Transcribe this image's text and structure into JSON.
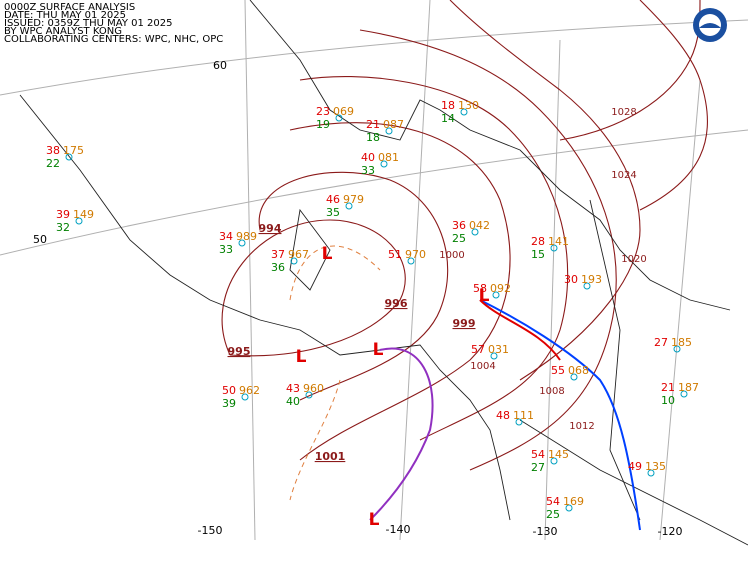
{
  "header": {
    "lines": [
      "0000Z SURFACE ANALYSIS",
      "DATE: THU MAY 01 2025",
      "ISSUED: 0359Z THU MAY 01 2025",
      "BY WPC ANALYST KONG",
      "COLLABORATING CENTERS: WPC, NHC, OPC"
    ]
  },
  "grid_labels": [
    "60",
    "50",
    "-150",
    "-140",
    "-130",
    "-120"
  ],
  "isobar_labels": [
    "994",
    "996",
    "999",
    "995",
    "1001",
    "1000",
    "1004",
    "1008",
    "1012",
    "1020",
    "1024",
    "1028"
  ],
  "lows": [
    "L",
    "L",
    "L",
    "L",
    "L"
  ],
  "stations": [
    {
      "temp": "23",
      "dewpoint": "19",
      "pressure": "069"
    },
    {
      "temp": "21",
      "dewpoint": "18",
      "pressure": "087"
    },
    {
      "temp": "18",
      "dewpoint": "14",
      "pressure": "130"
    },
    {
      "temp": "40",
      "dewpoint": "33",
      "pressure": "081"
    },
    {
      "temp": "38",
      "dewpoint": "22",
      "pressure": "175"
    },
    {
      "temp": "39",
      "dewpoint": "32",
      "pressure": "149"
    },
    {
      "temp": "34",
      "dewpoint": "33",
      "pressure": "989"
    },
    {
      "temp": "37",
      "dewpoint": "36",
      "pressure": "967"
    },
    {
      "temp": "46",
      "dewpoint": "35",
      "pressure": "979"
    },
    {
      "temp": "51",
      "pressure": "970"
    },
    {
      "temp": "36",
      "dewpoint": "25",
      "pressure": "042"
    },
    {
      "temp": "28",
      "dewpoint": "15",
      "pressure": "141"
    },
    {
      "temp": "58",
      "pressure": "092"
    },
    {
      "temp": "57",
      "pressure": "031"
    },
    {
      "temp": "55",
      "pressure": "068"
    },
    {
      "temp": "48",
      "pressure": "111"
    },
    {
      "temp": "54",
      "dewpoint": "27",
      "pressure": "145"
    },
    {
      "temp": "54",
      "dewpoint": "25",
      "pressure": "169"
    },
    {
      "temp": "49",
      "pressure": "135"
    },
    {
      "temp": "50",
      "dewpoint": "39",
      "pressure": "962"
    },
    {
      "temp": "43",
      "dewpoint": "40",
      "pressure": "960"
    },
    {
      "temp": "27",
      "pressure": "185"
    },
    {
      "temp": "21",
      "dewpoint": "10",
      "pressure": "187"
    },
    {
      "temp": "30",
      "pressure": "193"
    }
  ]
}
